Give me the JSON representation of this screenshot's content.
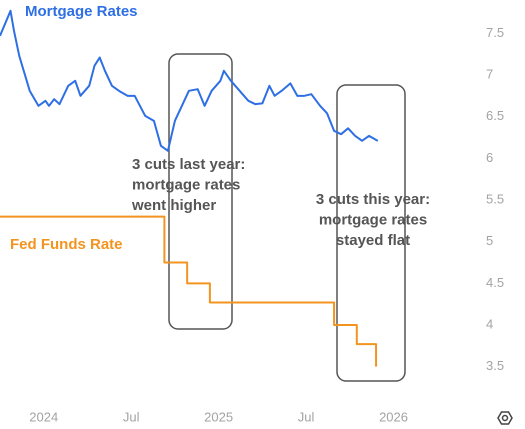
{
  "chart_data": {
    "type": "line",
    "xlim": [
      2023.75,
      2026.5
    ],
    "ylim": [
      3.1,
      7.9
    ],
    "xticks": [
      2024,
      {
        "value": 2024.5,
        "label": "Jul"
      },
      2025,
      {
        "value": 2025.5,
        "label": "Jul"
      },
      2026
    ],
    "yticks": [
      7.5,
      7,
      6.5,
      6,
      5.5,
      5,
      4.5,
      4,
      3.5
    ],
    "annotations": [
      [
        "3 cuts last year:",
        "mortgage rates",
        "went higher"
      ],
      [
        "3 cuts this year:",
        "mortgage rates",
        "stayed flat"
      ]
    ],
    "series": [
      {
        "name": "Mortgage Rates",
        "color": "#2f6fe4",
        "x": [
          2023.75,
          2023.81,
          2023.83,
          2023.86,
          2023.92,
          2023.97,
          2024.01,
          2024.03,
          2024.06,
          2024.09,
          2024.14,
          2024.18,
          2024.21,
          2024.26,
          2024.29,
          2024.32,
          2024.35,
          2024.39,
          2024.43,
          2024.48,
          2024.52,
          2024.58,
          2024.63,
          2024.67,
          2024.71,
          2024.75,
          2024.79,
          2024.83,
          2024.88,
          2024.92,
          2024.96,
          2025.01,
          2025.03,
          2025.07,
          2025.12,
          2025.17,
          2025.21,
          2025.25,
          2025.29,
          2025.32,
          2025.36,
          2025.41,
          2025.45,
          2025.49,
          2025.53,
          2025.58,
          2025.62,
          2025.66,
          2025.7,
          2025.74,
          2025.78,
          2025.82,
          2025.86,
          2025.91
        ],
        "values": [
          7.47,
          7.77,
          7.53,
          7.23,
          6.81,
          6.63,
          6.69,
          6.63,
          6.71,
          6.65,
          6.87,
          6.93,
          6.75,
          6.87,
          7.11,
          7.21,
          7.05,
          6.87,
          6.81,
          6.75,
          6.75,
          6.51,
          6.45,
          6.15,
          6.09,
          6.45,
          6.63,
          6.81,
          6.83,
          6.63,
          6.81,
          6.93,
          7.05,
          6.93,
          6.81,
          6.69,
          6.65,
          6.66,
          6.87,
          6.75,
          6.81,
          6.9,
          6.75,
          6.75,
          6.77,
          6.63,
          6.54,
          6.33,
          6.29,
          6.36,
          6.27,
          6.21,
          6.27,
          6.21
        ]
      },
      {
        "name": "Fed Funds Rate",
        "color": "#f39420",
        "x": [
          2023.75,
          2024.69,
          2024.69,
          2024.82,
          2024.82,
          2024.95,
          2024.95,
          2025.66,
          2025.66,
          2025.79,
          2025.79,
          2025.9,
          2025.9
        ],
        "values": [
          5.3,
          5.3,
          4.75,
          4.75,
          4.5,
          4.5,
          4.27,
          4.27,
          4.0,
          4.0,
          3.77,
          3.77,
          3.5
        ]
      }
    ]
  }
}
